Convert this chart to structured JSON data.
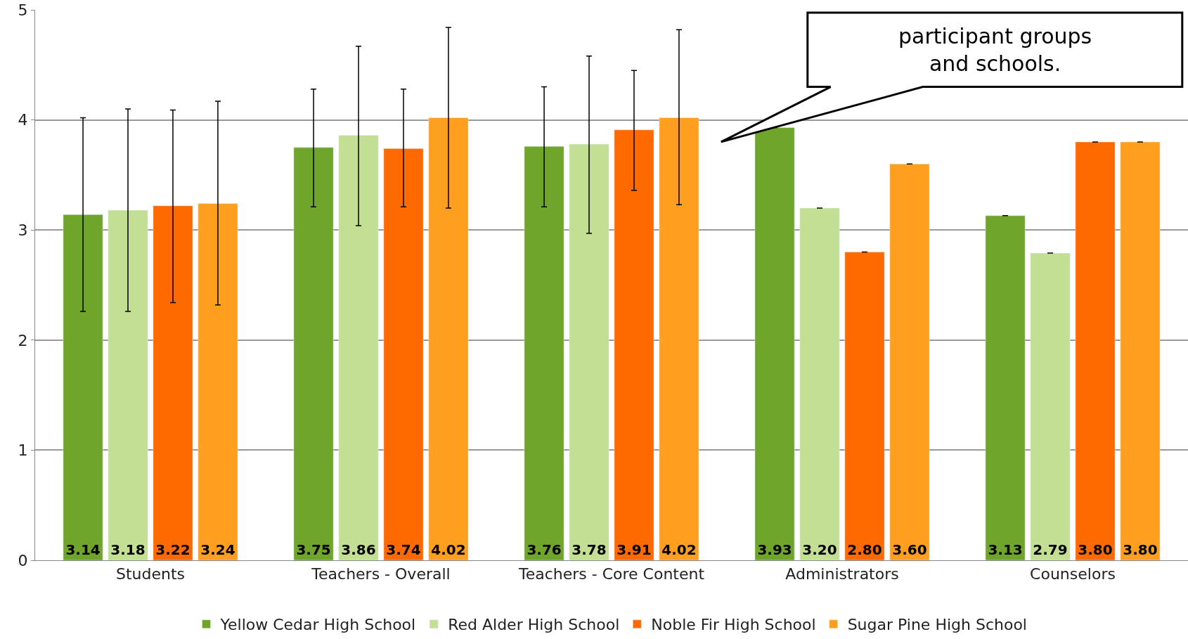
{
  "chart_data": {
    "type": "bar",
    "categories": [
      "Students",
      "Teachers - Overall",
      "Teachers - Core Content",
      "Administrators",
      "Counselors"
    ],
    "series": [
      {
        "name": "Yellow Cedar High School",
        "color": "#6fa52a",
        "values": [
          3.14,
          3.75,
          3.76,
          3.93,
          3.13
        ],
        "value_labels": [
          "3.14",
          "3.75",
          "3.76",
          "3.93",
          "3.13"
        ],
        "errors": [
          [
            2.26,
            4.02
          ],
          [
            3.21,
            4.28
          ],
          [
            3.21,
            4.3
          ],
          null,
          null
        ]
      },
      {
        "name": "Red Alder High School",
        "color": "#c3df94",
        "values": [
          3.18,
          3.86,
          3.78,
          3.2,
          2.79
        ],
        "value_labels": [
          "3.18",
          "3.86",
          "3.78",
          "3.20",
          "2.79"
        ],
        "errors": [
          [
            2.26,
            4.1
          ],
          [
            3.04,
            4.67
          ],
          [
            2.97,
            4.58
          ],
          null,
          null
        ]
      },
      {
        "name": "Noble Fir High School",
        "color": "#ff6a00",
        "values": [
          3.22,
          3.74,
          3.91,
          2.8,
          3.8
        ],
        "value_labels": [
          "3.22",
          "3.74",
          "3.91",
          "2.80",
          "3.80"
        ],
        "errors": [
          [
            2.34,
            4.09
          ],
          [
            3.21,
            4.28
          ],
          [
            3.36,
            4.45
          ],
          null,
          null
        ]
      },
      {
        "name": "Sugar Pine High School",
        "color": "#ff9f1f",
        "values": [
          3.24,
          4.02,
          4.02,
          3.6,
          3.8
        ],
        "value_labels": [
          "3.24",
          "4.02",
          "4.02",
          "3.60",
          "3.80"
        ],
        "errors": [
          [
            2.32,
            4.17
          ],
          [
            3.2,
            4.84
          ],
          [
            3.23,
            4.82
          ],
          null,
          null
        ]
      }
    ],
    "ylim": [
      0,
      5
    ],
    "yticks": [
      0,
      1,
      2,
      3,
      4,
      5
    ],
    "grid": "y",
    "legend": "bottom",
    "annotations": [
      "participant groups and schools."
    ]
  }
}
